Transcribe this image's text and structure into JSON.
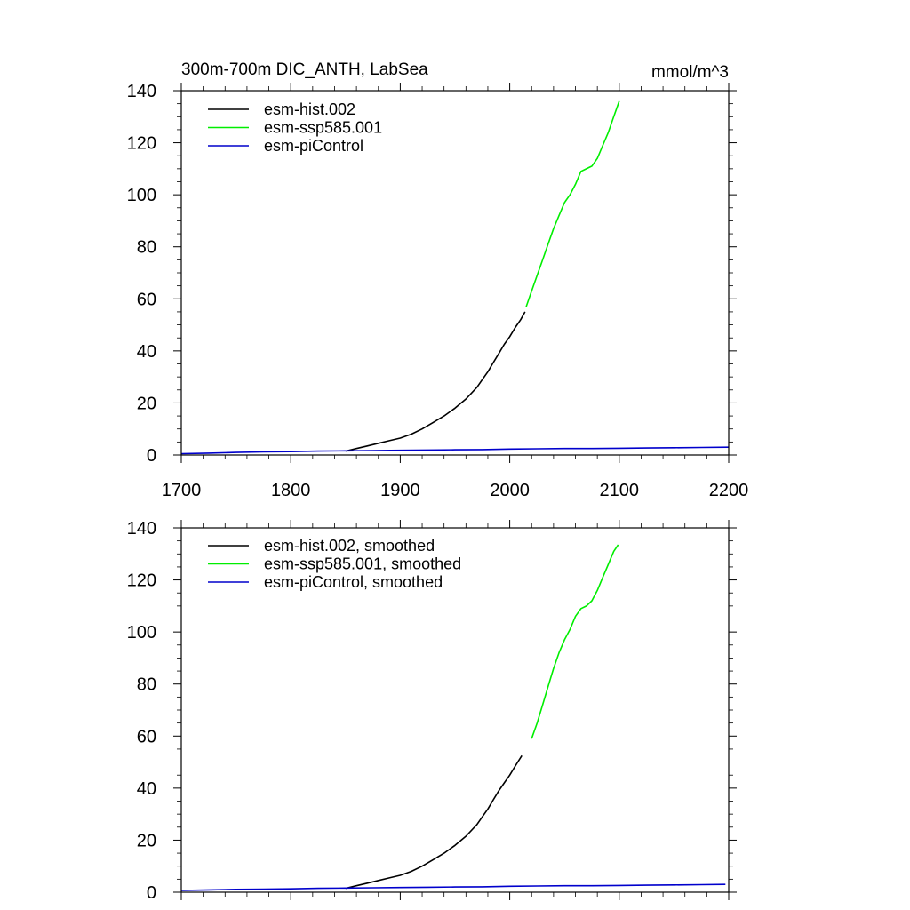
{
  "chart_data": [
    {
      "type": "line",
      "title": "300m-700m DIC_ANTH, LabSea",
      "units": "mmol/m^3",
      "xlim": [
        1700,
        2200
      ],
      "ylim": [
        0,
        140
      ],
      "x_ticks": [
        1700,
        1800,
        1900,
        2000,
        2100,
        2200
      ],
      "x_tick_labels": [
        "1700",
        "1800",
        "1900",
        "2000",
        "2100",
        "2200"
      ],
      "y_ticks": [
        0,
        20,
        40,
        60,
        80,
        100,
        120,
        140
      ],
      "y_tick_labels": [
        "0",
        "20",
        "40",
        "60",
        "80",
        "100",
        "120",
        "140"
      ],
      "legend_position": "top-left",
      "series": [
        {
          "name": "esm-hist.002",
          "color": "#000000",
          "x": [
            1850,
            1860,
            1870,
            1880,
            1890,
            1900,
            1910,
            1920,
            1930,
            1940,
            1950,
            1960,
            1970,
            1975,
            1980,
            1985,
            1990,
            1995,
            2000,
            2005,
            2010,
            2014
          ],
          "y": [
            1.5,
            2.5,
            3.5,
            4.5,
            5.5,
            6.5,
            8.0,
            10.0,
            12.5,
            15.0,
            18.0,
            21.5,
            26.0,
            29.0,
            32.0,
            35.5,
            39.0,
            42.5,
            45.5,
            49.0,
            52.0,
            55.0
          ]
        },
        {
          "name": "esm-ssp585.001",
          "color": "#00ee00",
          "x": [
            2015,
            2020,
            2025,
            2030,
            2035,
            2040,
            2045,
            2050,
            2055,
            2060,
            2065,
            2070,
            2075,
            2080,
            2085,
            2090,
            2095,
            2100
          ],
          "y": [
            57.0,
            63.0,
            69.0,
            75.0,
            81.0,
            87.0,
            92.0,
            97.0,
            100.0,
            104.0,
            109.0,
            110.0,
            111.0,
            114.0,
            119.0,
            124.0,
            130.0,
            136.0
          ]
        },
        {
          "name": "esm-piControl",
          "color": "#0000cc",
          "x": [
            1700,
            1725,
            1750,
            1775,
            1800,
            1825,
            1850,
            1875,
            1900,
            1925,
            1950,
            1975,
            2000,
            2025,
            2050,
            2075,
            2100,
            2125,
            2150,
            2175,
            2200
          ],
          "y": [
            0.5,
            0.7,
            1.0,
            1.2,
            1.3,
            1.5,
            1.6,
            1.7,
            1.8,
            1.9,
            2.0,
            2.1,
            2.3,
            2.4,
            2.5,
            2.5,
            2.6,
            2.7,
            2.8,
            2.9,
            3.0
          ]
        }
      ]
    },
    {
      "type": "line",
      "title": "",
      "xlim": [
        1700,
        2200
      ],
      "ylim": [
        0,
        140
      ],
      "y_ticks": [
        0,
        20,
        40,
        60,
        80,
        100,
        120,
        140
      ],
      "y_tick_labels": [
        "0",
        "20",
        "40",
        "60",
        "80",
        "100",
        "120",
        "140"
      ],
      "legend_position": "top-left",
      "series": [
        {
          "name": "esm-hist.002, smoothed",
          "color": "#000000",
          "x": [
            1850,
            1860,
            1870,
            1880,
            1890,
            1900,
            1910,
            1920,
            1930,
            1940,
            1950,
            1960,
            1970,
            1975,
            1980,
            1985,
            1990,
            1995,
            2000,
            2005,
            2011
          ],
          "y": [
            1.5,
            2.5,
            3.5,
            4.5,
            5.5,
            6.5,
            8.0,
            10.0,
            12.5,
            15.0,
            18.0,
            21.5,
            26.0,
            29.0,
            32.0,
            35.5,
            39.0,
            42.0,
            45.0,
            48.5,
            52.5
          ]
        },
        {
          "name": "esm-ssp585.001, smoothed",
          "color": "#00ee00",
          "x": [
            2020,
            2025,
            2030,
            2035,
            2040,
            2045,
            2050,
            2055,
            2060,
            2065,
            2070,
            2075,
            2080,
            2085,
            2090,
            2095,
            2099
          ],
          "y": [
            59.0,
            65.0,
            72.0,
            79.0,
            86.0,
            92.0,
            97.0,
            101.0,
            106.0,
            109.0,
            110.0,
            112.0,
            116.0,
            121.0,
            126.0,
            131.0,
            133.5
          ]
        },
        {
          "name": "esm-piControl, smoothed",
          "color": "#0000cc",
          "x": [
            1700,
            1725,
            1750,
            1775,
            1800,
            1825,
            1850,
            1875,
            1900,
            1925,
            1950,
            1975,
            2000,
            2025,
            2050,
            2075,
            2100,
            2125,
            2150,
            2175,
            2197
          ],
          "y": [
            0.7,
            0.9,
            1.1,
            1.2,
            1.3,
            1.5,
            1.6,
            1.7,
            1.8,
            1.9,
            2.0,
            2.1,
            2.3,
            2.4,
            2.5,
            2.5,
            2.6,
            2.7,
            2.8,
            2.9,
            3.0
          ]
        }
      ]
    }
  ]
}
